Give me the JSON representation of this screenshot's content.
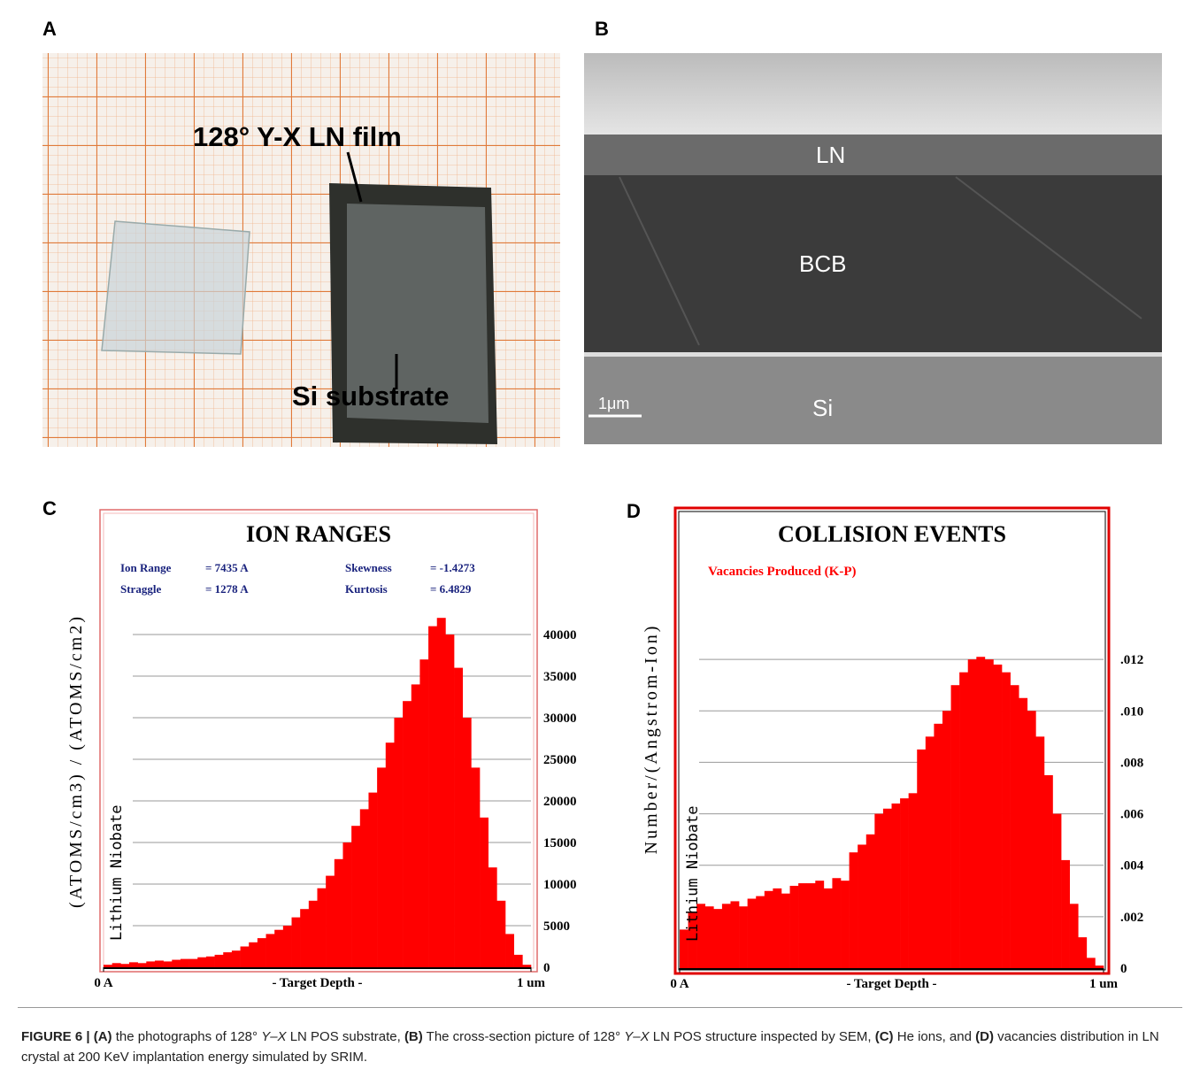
{
  "panels": {
    "A": {
      "label": "A",
      "film": "128°  Y-X LN film",
      "substrate": "Si substrate"
    },
    "B": {
      "label": "B",
      "ln": "LN",
      "bcb": "BCB",
      "si": "Si",
      "scale": "1μm"
    },
    "C": {
      "label": "C"
    },
    "D": {
      "label": "D"
    }
  },
  "chart_data": [
    {
      "type": "histogram",
      "title": "ION RANGES",
      "y_label": "(ATOMS/cm3) / (ATOMS/cm2)",
      "side_label": "Lithium Niobate",
      "x_label": "- Target Depth -",
      "annotations": [
        [
          "Ion Range",
          "= 7435 A"
        ],
        [
          "Skewness",
          "= -1.4273"
        ],
        [
          "Straggle",
          "= 1278 A"
        ],
        [
          "Kurtosis",
          "= 6.4829"
        ]
      ],
      "color": "#ff0000",
      "bins": [
        0,
        0.02,
        0.04,
        0.06,
        0.08,
        0.1,
        0.12,
        0.14,
        0.16,
        0.18,
        0.2,
        0.22,
        0.24,
        0.26,
        0.28,
        0.3,
        0.32,
        0.34,
        0.36,
        0.38,
        0.4,
        0.42,
        0.44,
        0.46,
        0.48,
        0.5,
        0.52,
        0.54,
        0.56,
        0.58,
        0.6,
        0.62,
        0.64,
        0.66,
        0.68,
        0.7,
        0.72,
        0.74,
        0.76,
        0.78,
        0.8,
        0.82,
        0.84,
        0.86,
        0.88,
        0.9,
        0.92,
        0.94,
        0.96,
        0.98,
        1
      ],
      "values": [
        300,
        500,
        400,
        600,
        500,
        700,
        800,
        700,
        900,
        1000,
        1000,
        1200,
        1300,
        1500,
        1800,
        2000,
        2500,
        3000,
        3500,
        4000,
        4500,
        5000,
        6000,
        7000,
        8000,
        9500,
        11000,
        13000,
        15000,
        17000,
        19000,
        21000,
        24000,
        27000,
        30000,
        32000,
        34000,
        37000,
        41000,
        42000,
        40000,
        36000,
        30000,
        24000,
        18000,
        12000,
        8000,
        4000,
        1500,
        300
      ],
      "xlim": [
        0,
        1
      ],
      "xticks": [
        {
          "value": 0,
          "label": "0 A"
        },
        {
          "value": 1,
          "label": "1 um"
        }
      ],
      "ylim": [
        0,
        45000
      ],
      "yticks": [
        0,
        5000,
        10000,
        15000,
        20000,
        25000,
        30000,
        35000,
        40000
      ],
      "grid": true
    },
    {
      "type": "histogram",
      "title": "COLLISION EVENTS",
      "y_label": "Number/(Angstrom-Ion)",
      "side_label": "Lithium Niobate",
      "x_label": "- Target Depth -",
      "bins": [
        0,
        0.02,
        0.04,
        0.06,
        0.08,
        0.1,
        0.12,
        0.14,
        0.16,
        0.18,
        0.2,
        0.22,
        0.24,
        0.26,
        0.28,
        0.3,
        0.32,
        0.34,
        0.36,
        0.38,
        0.4,
        0.42,
        0.44,
        0.46,
        0.48,
        0.5,
        0.52,
        0.54,
        0.56,
        0.58,
        0.6,
        0.62,
        0.64,
        0.66,
        0.68,
        0.7,
        0.72,
        0.74,
        0.76,
        0.78,
        0.8,
        0.82,
        0.84,
        0.86,
        0.88,
        0.9,
        0.92,
        0.94,
        0.96,
        0.98,
        1
      ],
      "series": [
        {
          "name": "Vacancies Produced (K-P)",
          "color": "#ff0000",
          "values": [
            0.0015,
            0.0022,
            0.0025,
            0.0024,
            0.0023,
            0.0025,
            0.0026,
            0.0024,
            0.0027,
            0.0028,
            0.003,
            0.0031,
            0.0029,
            0.0032,
            0.0033,
            0.0033,
            0.0034,
            0.0031,
            0.0035,
            0.0034,
            0.0045,
            0.0048,
            0.0052,
            0.006,
            0.0062,
            0.0064,
            0.0066,
            0.0068,
            0.0085,
            0.009,
            0.0095,
            0.01,
            0.011,
            0.0115,
            0.012,
            0.0121,
            0.012,
            0.0118,
            0.0115,
            0.011,
            0.0105,
            0.01,
            0.009,
            0.0075,
            0.006,
            0.0042,
            0.0025,
            0.0012,
            0.0004,
            0.0001
          ]
        }
      ],
      "xlim": [
        0,
        1
      ],
      "xticks": [
        {
          "value": 0,
          "label": "0 A"
        },
        {
          "value": 1,
          "label": "1 um"
        }
      ],
      "ylim": [
        0,
        0.014
      ],
      "yticks": [
        0,
        {
          "value": 0.002,
          "label": ".002"
        },
        {
          "value": 0.004,
          "label": ".004"
        },
        {
          "value": 0.006,
          "label": ".006"
        },
        {
          "value": 0.008,
          "label": ".008"
        },
        {
          "value": 0.01,
          "label": ".010"
        },
        {
          "value": 0.012,
          "label": ".012"
        }
      ],
      "grid": true
    }
  ],
  "caption": [
    "FIGURE 6 | (A)",
    " the photographs of 128° ",
    "Y–X",
    " LN POS substrate, ",
    "(B)",
    " The cross-section picture of 128° ",
    "Y–X",
    " LN POS structure inspected by SEM, ",
    "(C)",
    " He ions, and ",
    "(D)",
    " vacancies distribution in LN crystal at 200 KeV implantation energy simulated by SRIM."
  ]
}
